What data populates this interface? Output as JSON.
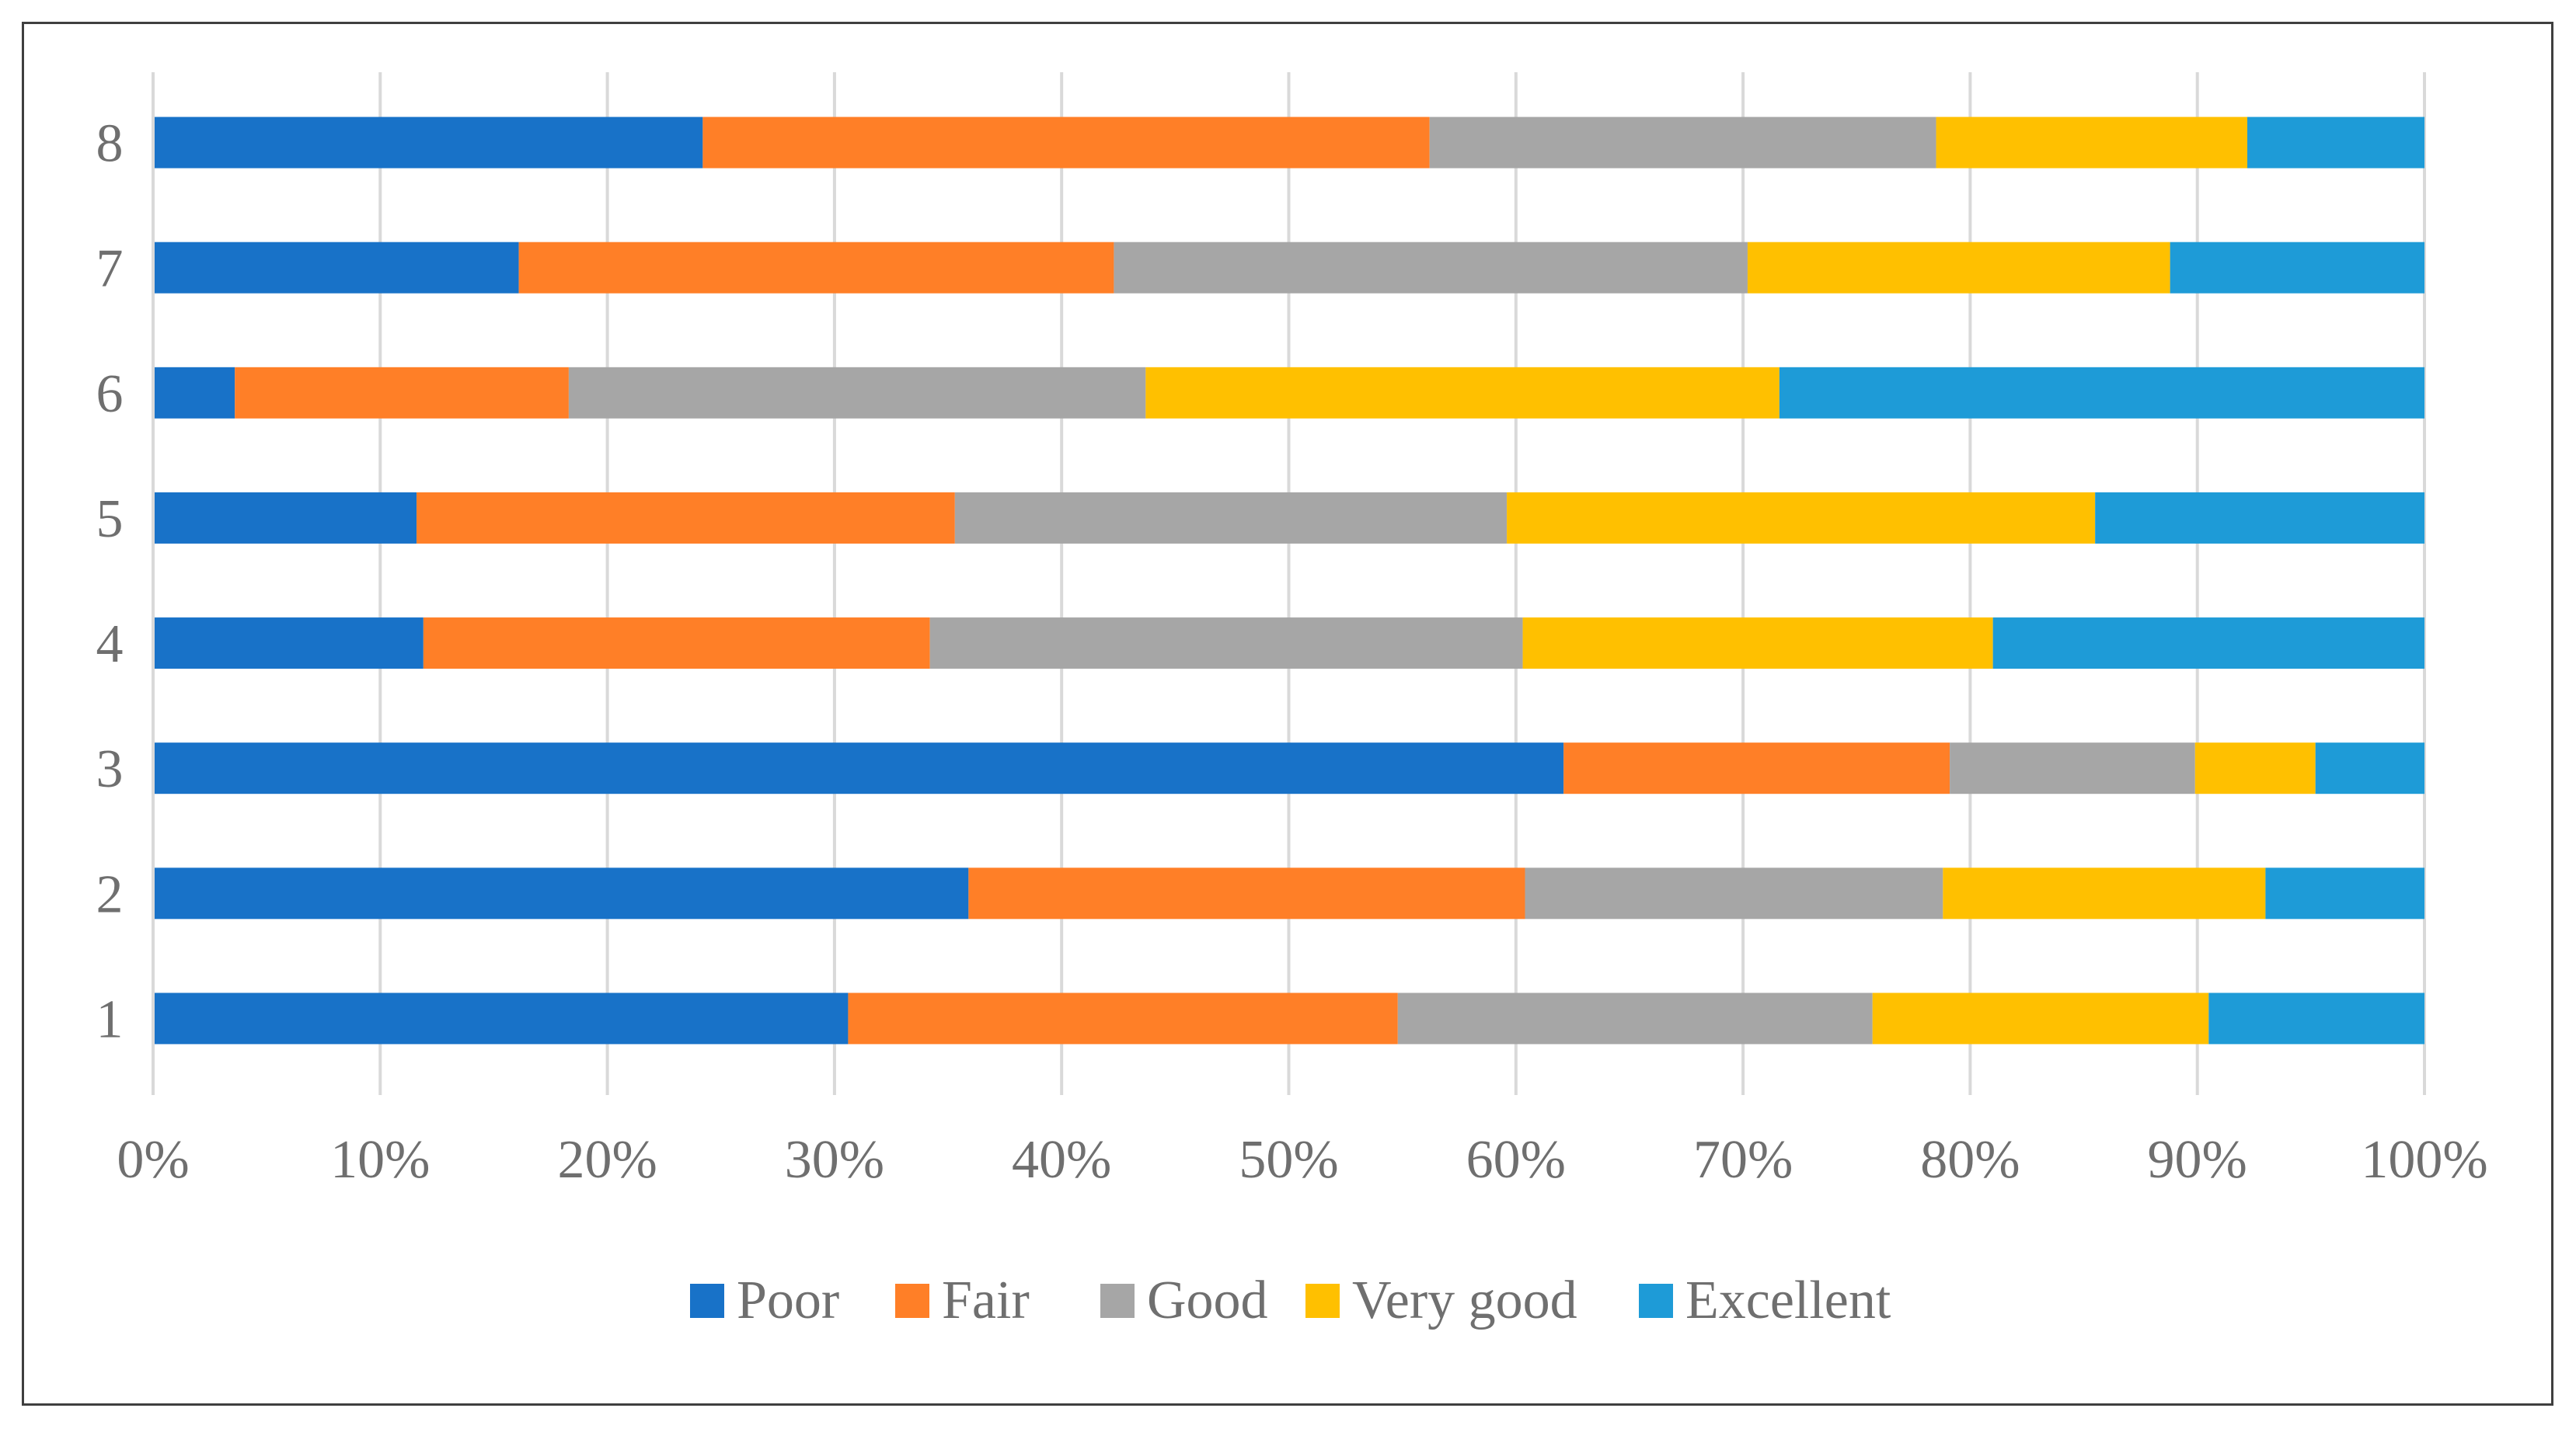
{
  "chart_data": {
    "type": "bar",
    "orientation": "horizontal",
    "stacked": "percent",
    "title": "",
    "xlabel": "",
    "ylabel": "",
    "xlim": [
      0,
      100
    ],
    "grid": true,
    "legend_position": "bottom",
    "categories": [
      "1",
      "2",
      "3",
      "4",
      "5",
      "6",
      "7",
      "8"
    ],
    "x_ticks": [
      "0%",
      "10%",
      "20%",
      "30%",
      "40%",
      "50%",
      "60%",
      "70%",
      "80%",
      "90%",
      "100%"
    ],
    "series": [
      {
        "name": "Poor",
        "color": "#1872C8",
        "values": [
          30.6,
          35.9,
          62.1,
          11.9,
          11.6,
          3.6,
          16.1,
          24.2
        ]
      },
      {
        "name": "Fair",
        "color": "#FF7F27",
        "values": [
          24.2,
          24.5,
          17.0,
          22.3,
          23.7,
          14.7,
          26.2,
          32.0
        ]
      },
      {
        "name": "Good",
        "color": "#A6A6A6",
        "values": [
          20.9,
          18.4,
          10.8,
          26.1,
          24.3,
          25.4,
          27.9,
          22.3
        ]
      },
      {
        "name": "Very good",
        "color": "#FFC000",
        "values": [
          14.8,
          14.2,
          5.3,
          20.7,
          25.9,
          27.9,
          18.6,
          13.7
        ]
      },
      {
        "name": "Excellent",
        "color": "#1E9BD7",
        "values": [
          9.5,
          7.0,
          4.8,
          19.0,
          14.5,
          28.4,
          11.2,
          7.8
        ]
      }
    ]
  }
}
